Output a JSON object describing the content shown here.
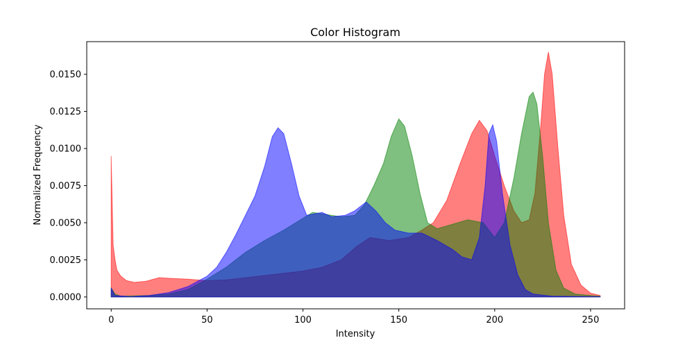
{
  "chart_data": {
    "type": "area",
    "title": "Color Histogram",
    "xlabel": "Intensity",
    "ylabel": "Normalized Frequency",
    "xlim": [
      -12.75,
      267.75
    ],
    "ylim": [
      -0.0008,
      0.0172
    ],
    "xticks": [
      0,
      50,
      100,
      150,
      200,
      250
    ],
    "xtick_labels": [
      "0",
      "50",
      "100",
      "150",
      "200",
      "250"
    ],
    "yticks": [
      0.0,
      0.0025,
      0.005,
      0.0075,
      0.01,
      0.0125,
      0.015
    ],
    "ytick_labels": [
      "0.0000",
      "0.0025",
      "0.0050",
      "0.0075",
      "0.0100",
      "0.0125",
      "0.0150"
    ],
    "grid": false,
    "legend": "none",
    "fill_opacity": 0.5,
    "series": [
      {
        "color": "#ff0000",
        "points": [
          [
            0,
            0.0095
          ],
          [
            1,
            0.0035
          ],
          [
            2,
            0.0025
          ],
          [
            3,
            0.0018
          ],
          [
            5,
            0.0014
          ],
          [
            8,
            0.0011
          ],
          [
            12,
            0.00098
          ],
          [
            18,
            0.00105
          ],
          [
            25,
            0.0013
          ],
          [
            32,
            0.00125
          ],
          [
            40,
            0.0012
          ],
          [
            50,
            0.0011
          ],
          [
            60,
            0.00115
          ],
          [
            70,
            0.0013
          ],
          [
            80,
            0.00145
          ],
          [
            90,
            0.0016
          ],
          [
            100,
            0.00175
          ],
          [
            110,
            0.002
          ],
          [
            120,
            0.0025
          ],
          [
            128,
            0.0034
          ],
          [
            135,
            0.004
          ],
          [
            145,
            0.0038
          ],
          [
            155,
            0.004
          ],
          [
            162,
            0.0045
          ],
          [
            168,
            0.005
          ],
          [
            175,
            0.0065
          ],
          [
            182,
            0.009
          ],
          [
            188,
            0.011
          ],
          [
            192,
            0.0119
          ],
          [
            196,
            0.0112
          ],
          [
            200,
            0.0095
          ],
          [
            205,
            0.0075
          ],
          [
            210,
            0.0058
          ],
          [
            214,
            0.005
          ],
          [
            218,
            0.0052
          ],
          [
            221,
            0.007
          ],
          [
            224,
            0.0115
          ],
          [
            226,
            0.015
          ],
          [
            228,
            0.0165
          ],
          [
            230,
            0.015
          ],
          [
            233,
            0.01
          ],
          [
            236,
            0.0055
          ],
          [
            240,
            0.0022
          ],
          [
            245,
            0.0008
          ],
          [
            250,
            0.00025
          ],
          [
            255,
            0.0001
          ]
        ]
      },
      {
        "color": "#008000",
        "points": [
          [
            0,
            0.0006
          ],
          [
            2,
            0.0002
          ],
          [
            5,
            5e-05
          ],
          [
            20,
            0.0001
          ],
          [
            30,
            0.0002
          ],
          [
            40,
            0.0005
          ],
          [
            50,
            0.0012
          ],
          [
            60,
            0.002
          ],
          [
            70,
            0.003
          ],
          [
            80,
            0.0038
          ],
          [
            90,
            0.0045
          ],
          [
            100,
            0.0053
          ],
          [
            105,
            0.0057
          ],
          [
            110,
            0.0056
          ],
          [
            120,
            0.0054
          ],
          [
            127,
            0.0055
          ],
          [
            132,
            0.0062
          ],
          [
            137,
            0.0075
          ],
          [
            142,
            0.009
          ],
          [
            146,
            0.0108
          ],
          [
            150,
            0.012
          ],
          [
            153,
            0.0115
          ],
          [
            157,
            0.0095
          ],
          [
            161,
            0.007
          ],
          [
            165,
            0.005
          ],
          [
            170,
            0.0046
          ],
          [
            178,
            0.0049
          ],
          [
            186,
            0.0052
          ],
          [
            194,
            0.005
          ],
          [
            200,
            0.004
          ],
          [
            205,
            0.005
          ],
          [
            210,
            0.008
          ],
          [
            214,
            0.011
          ],
          [
            218,
            0.0135
          ],
          [
            220,
            0.0138
          ],
          [
            222,
            0.013
          ],
          [
            225,
            0.0095
          ],
          [
            228,
            0.005
          ],
          [
            232,
            0.0018
          ],
          [
            236,
            0.0006
          ],
          [
            242,
            0.0002
          ],
          [
            250,
            0.0001
          ],
          [
            255,
            5e-05
          ]
        ]
      },
      {
        "color": "#0000ff",
        "points": [
          [
            0,
            0.0006
          ],
          [
            2,
            0.0001
          ],
          [
            10,
            2e-05
          ],
          [
            20,
            0.0001
          ],
          [
            30,
            0.0003
          ],
          [
            40,
            0.0007
          ],
          [
            50,
            0.0014
          ],
          [
            55,
            0.002
          ],
          [
            60,
            0.003
          ],
          [
            65,
            0.0042
          ],
          [
            70,
            0.0055
          ],
          [
            75,
            0.0068
          ],
          [
            80,
            0.0088
          ],
          [
            84,
            0.0108
          ],
          [
            87,
            0.0114
          ],
          [
            90,
            0.011
          ],
          [
            94,
            0.009
          ],
          [
            98,
            0.0068
          ],
          [
            102,
            0.0055
          ],
          [
            106,
            0.0056
          ],
          [
            110,
            0.0057
          ],
          [
            115,
            0.0054
          ],
          [
            122,
            0.0055
          ],
          [
            127,
            0.0058
          ],
          [
            133,
            0.0064
          ],
          [
            138,
            0.0058
          ],
          [
            143,
            0.005
          ],
          [
            148,
            0.0045
          ],
          [
            155,
            0.0043
          ],
          [
            162,
            0.0043
          ],
          [
            170,
            0.0038
          ],
          [
            178,
            0.0032
          ],
          [
            183,
            0.0027
          ],
          [
            188,
            0.0025
          ],
          [
            192,
            0.004
          ],
          [
            195,
            0.0075
          ],
          [
            197,
            0.011
          ],
          [
            199,
            0.0116
          ],
          [
            201,
            0.0105
          ],
          [
            204,
            0.007
          ],
          [
            208,
            0.0035
          ],
          [
            212,
            0.0015
          ],
          [
            216,
            0.0005
          ],
          [
            220,
            0.0002
          ],
          [
            230,
            5e-05
          ],
          [
            255,
            2e-05
          ]
        ]
      }
    ]
  }
}
